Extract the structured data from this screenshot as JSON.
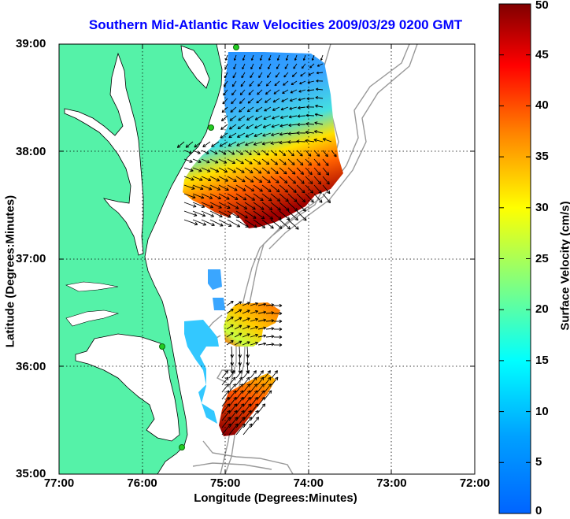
{
  "title": "Southern Mid-Atlantic Raw Velocities 2009/03/29 0200 GMT",
  "xlabel": "Longitude (Degrees:Minutes)",
  "ylabel": "Latitude (Degrees:Minutes)",
  "colorbar_label": "Surface Velocity (cm/s)",
  "colors": {
    "land": "#55f2a8",
    "coast_line": "#000000",
    "bathymetry": "#999999",
    "grid": "#000000",
    "station": "#22cc22"
  },
  "chart_data": {
    "type": "heatmap",
    "title": "Southern Mid-Atlantic Raw Velocities 2009/03/29 0200 GMT",
    "xlabel": "Longitude (Degrees:Minutes)",
    "ylabel": "Latitude (Degrees:Minutes)",
    "xlim": [
      77,
      72
    ],
    "ylim": [
      35,
      39
    ],
    "x_ticks": [
      {
        "value": 77,
        "label": "77:00"
      },
      {
        "value": 76,
        "label": "76:00"
      },
      {
        "value": 75,
        "label": "75:00"
      },
      {
        "value": 74,
        "label": "74:00"
      },
      {
        "value": 73,
        "label": "73:00"
      },
      {
        "value": 72,
        "label": "72:00"
      }
    ],
    "y_ticks": [
      {
        "value": 39,
        "label": "39:00"
      },
      {
        "value": 38,
        "label": "38:00"
      },
      {
        "value": 37,
        "label": "37:00"
      },
      {
        "value": 36,
        "label": "36:00"
      },
      {
        "value": 35,
        "label": "35:00"
      }
    ],
    "grid": true,
    "colorbar": {
      "min": 0,
      "max": 50,
      "ticks": [
        0,
        5,
        10,
        15,
        20,
        25,
        30,
        35,
        40,
        45,
        50
      ],
      "label": "Surface Velocity (cm/s)"
    },
    "stations": [
      {
        "lon": 74.85,
        "lat": 38.94
      },
      {
        "lon": 75.08,
        "lat": 38.23
      },
      {
        "lon": 75.68,
        "lat": 36.18
      },
      {
        "lon": 75.48,
        "lat": 35.22
      }
    ],
    "velocity_regions": [
      {
        "name": "north",
        "lon": [
          73.8,
          75.5
        ],
        "lat": [
          37.2,
          38.9
        ]
      },
      {
        "name": "south_small",
        "lon": [
          75.0,
          75.2
        ],
        "lat": [
          36.7,
          36.9
        ]
      },
      {
        "name": "south_mid",
        "lon": [
          74.5,
          75.5
        ],
        "lat": [
          36.0,
          36.6
        ]
      },
      {
        "name": "south",
        "lon": [
          74.4,
          75.3
        ],
        "lat": [
          35.4,
          36.1
        ]
      }
    ]
  }
}
